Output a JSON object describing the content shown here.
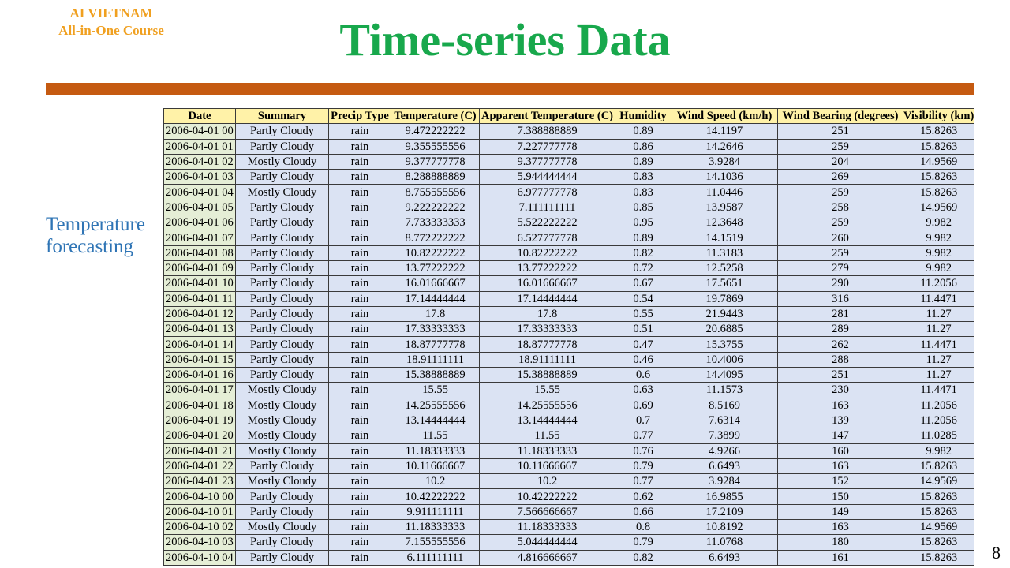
{
  "brand": {
    "line1": "AI VIETNAM",
    "line2": "All-in-One Course"
  },
  "title": "Time-series Data",
  "side_label": {
    "line1": "Temperature",
    "line2": "forecasting"
  },
  "slide_number": "8",
  "colors": {
    "title": "#18a84c",
    "brand": "#f0a020",
    "rule": "#c55a11",
    "side_label": "#2e74b5",
    "header_bg": "#fff2a8",
    "date_bg": "#e5eed6",
    "cell_bg": "#dbe3f3"
  },
  "table": {
    "headers": [
      "Date",
      "Summary",
      "Precip Type",
      "Temperature (C)",
      "Apparent Temperature (C)",
      "Humidity",
      "Wind Speed (km/h)",
      "Wind Bearing (degrees)",
      "Visibility (km)"
    ],
    "rows": [
      [
        "2006-04-01 00",
        "Partly Cloudy",
        "rain",
        "9.472222222",
        "7.388888889",
        "0.89",
        "14.1197",
        "251",
        "15.8263"
      ],
      [
        "2006-04-01 01",
        "Partly Cloudy",
        "rain",
        "9.355555556",
        "7.227777778",
        "0.86",
        "14.2646",
        "259",
        "15.8263"
      ],
      [
        "2006-04-01 02",
        "Mostly Cloudy",
        "rain",
        "9.377777778",
        "9.377777778",
        "0.89",
        "3.9284",
        "204",
        "14.9569"
      ],
      [
        "2006-04-01 03",
        "Partly Cloudy",
        "rain",
        "8.288888889",
        "5.944444444",
        "0.83",
        "14.1036",
        "269",
        "15.8263"
      ],
      [
        "2006-04-01 04",
        "Mostly Cloudy",
        "rain",
        "8.755555556",
        "6.977777778",
        "0.83",
        "11.0446",
        "259",
        "15.8263"
      ],
      [
        "2006-04-01 05",
        "Partly Cloudy",
        "rain",
        "9.222222222",
        "7.111111111",
        "0.85",
        "13.9587",
        "258",
        "14.9569"
      ],
      [
        "2006-04-01 06",
        "Partly Cloudy",
        "rain",
        "7.733333333",
        "5.522222222",
        "0.95",
        "12.3648",
        "259",
        "9.982"
      ],
      [
        "2006-04-01 07",
        "Partly Cloudy",
        "rain",
        "8.772222222",
        "6.527777778",
        "0.89",
        "14.1519",
        "260",
        "9.982"
      ],
      [
        "2006-04-01 08",
        "Partly Cloudy",
        "rain",
        "10.82222222",
        "10.82222222",
        "0.82",
        "11.3183",
        "259",
        "9.982"
      ],
      [
        "2006-04-01 09",
        "Partly Cloudy",
        "rain",
        "13.77222222",
        "13.77222222",
        "0.72",
        "12.5258",
        "279",
        "9.982"
      ],
      [
        "2006-04-01 10",
        "Partly Cloudy",
        "rain",
        "16.01666667",
        "16.01666667",
        "0.67",
        "17.5651",
        "290",
        "11.2056"
      ],
      [
        "2006-04-01 11",
        "Partly Cloudy",
        "rain",
        "17.14444444",
        "17.14444444",
        "0.54",
        "19.7869",
        "316",
        "11.4471"
      ],
      [
        "2006-04-01 12",
        "Partly Cloudy",
        "rain",
        "17.8",
        "17.8",
        "0.55",
        "21.9443",
        "281",
        "11.27"
      ],
      [
        "2006-04-01 13",
        "Partly Cloudy",
        "rain",
        "17.33333333",
        "17.33333333",
        "0.51",
        "20.6885",
        "289",
        "11.27"
      ],
      [
        "2006-04-01 14",
        "Partly Cloudy",
        "rain",
        "18.87777778",
        "18.87777778",
        "0.47",
        "15.3755",
        "262",
        "11.4471"
      ],
      [
        "2006-04-01 15",
        "Partly Cloudy",
        "rain",
        "18.91111111",
        "18.91111111",
        "0.46",
        "10.4006",
        "288",
        "11.27"
      ],
      [
        "2006-04-01 16",
        "Partly Cloudy",
        "rain",
        "15.38888889",
        "15.38888889",
        "0.6",
        "14.4095",
        "251",
        "11.27"
      ],
      [
        "2006-04-01 17",
        "Mostly Cloudy",
        "rain",
        "15.55",
        "15.55",
        "0.63",
        "11.1573",
        "230",
        "11.4471"
      ],
      [
        "2006-04-01 18",
        "Mostly Cloudy",
        "rain",
        "14.25555556",
        "14.25555556",
        "0.69",
        "8.5169",
        "163",
        "11.2056"
      ],
      [
        "2006-04-01 19",
        "Mostly Cloudy",
        "rain",
        "13.14444444",
        "13.14444444",
        "0.7",
        "7.6314",
        "139",
        "11.2056"
      ],
      [
        "2006-04-01 20",
        "Mostly Cloudy",
        "rain",
        "11.55",
        "11.55",
        "0.77",
        "7.3899",
        "147",
        "11.0285"
      ],
      [
        "2006-04-01 21",
        "Mostly Cloudy",
        "rain",
        "11.18333333",
        "11.18333333",
        "0.76",
        "4.9266",
        "160",
        "9.982"
      ],
      [
        "2006-04-01 22",
        "Partly Cloudy",
        "rain",
        "10.11666667",
        "10.11666667",
        "0.79",
        "6.6493",
        "163",
        "15.8263"
      ],
      [
        "2006-04-01 23",
        "Mostly Cloudy",
        "rain",
        "10.2",
        "10.2",
        "0.77",
        "3.9284",
        "152",
        "14.9569"
      ],
      [
        "2006-04-10 00",
        "Partly Cloudy",
        "rain",
        "10.42222222",
        "10.42222222",
        "0.62",
        "16.9855",
        "150",
        "15.8263"
      ],
      [
        "2006-04-10 01",
        "Partly Cloudy",
        "rain",
        "9.911111111",
        "7.566666667",
        "0.66",
        "17.2109",
        "149",
        "15.8263"
      ],
      [
        "2006-04-10 02",
        "Mostly Cloudy",
        "rain",
        "11.18333333",
        "11.18333333",
        "0.8",
        "10.8192",
        "163",
        "14.9569"
      ],
      [
        "2006-04-10 03",
        "Partly Cloudy",
        "rain",
        "7.155555556",
        "5.044444444",
        "0.79",
        "11.0768",
        "180",
        "15.8263"
      ],
      [
        "2006-04-10 04",
        "Partly Cloudy",
        "rain",
        "6.111111111",
        "4.816666667",
        "0.82",
        "6.6493",
        "161",
        "15.8263"
      ]
    ]
  }
}
